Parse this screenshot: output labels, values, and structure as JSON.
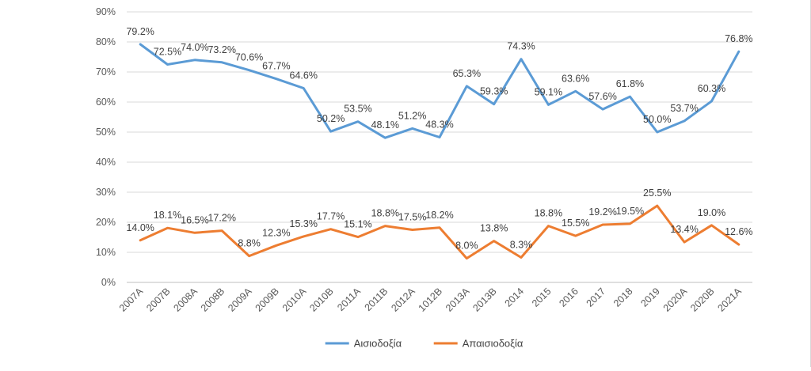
{
  "chart_data": {
    "type": "line",
    "title": "",
    "xlabel": "",
    "ylabel": "",
    "ylim": [
      0,
      90
    ],
    "y_ticks": [
      "0%",
      "10%",
      "20%",
      "30%",
      "40%",
      "50%",
      "60%",
      "70%",
      "80%",
      "90%"
    ],
    "grid": true,
    "legend_position": "bottom",
    "categories": [
      "2007A",
      "2007B",
      "2008A",
      "2008B",
      "2009A",
      "2009B",
      "2010A",
      "2010B",
      "2011A",
      "2011B",
      "2012A",
      "1012B",
      "2013A",
      "2013B",
      "2014",
      "2015",
      "2016",
      "2017",
      "2018",
      "2019",
      "2020A",
      "2020B",
      "2021A"
    ],
    "series": [
      {
        "name": "Αισιοδοξία",
        "color": "#5b9bd5",
        "values": [
          79.2,
          72.5,
          74.0,
          73.2,
          70.6,
          67.7,
          64.6,
          50.2,
          53.5,
          48.1,
          51.2,
          48.3,
          65.3,
          59.3,
          74.3,
          59.1,
          63.6,
          57.6,
          61.8,
          50.0,
          53.7,
          60.3,
          76.8
        ],
        "labels": [
          "79.2%",
          "72.5%",
          "74.0%",
          "73.2%",
          "70.6%",
          "67.7%",
          "64.6%",
          "50.2%",
          "53.5%",
          "48.1%",
          "51.2%",
          "48.3%",
          "65.3%",
          "59.3%",
          "74.3%",
          "59.1%",
          "63.6%",
          "57.6%",
          "61.8%",
          "50.0%",
          "53.7%",
          "60.3%",
          "76.8%"
        ]
      },
      {
        "name": "Απαισιοδοξία",
        "color": "#ed7d31",
        "values": [
          14.0,
          18.1,
          16.5,
          17.2,
          8.8,
          12.3,
          15.3,
          17.7,
          15.1,
          18.8,
          17.5,
          18.2,
          8.0,
          13.8,
          8.3,
          18.8,
          15.5,
          19.2,
          19.5,
          25.5,
          13.4,
          19.0,
          12.6
        ],
        "labels": [
          "14.0%",
          "18.1%",
          "16.5%",
          "17.2%",
          "8.8%",
          "12.3%",
          "15.3%",
          "17.7%",
          "15.1%",
          "18.8%",
          "17.5%",
          "18.2%",
          "8.0%",
          "13.8%",
          "8.3%",
          "18.8%",
          "15.5%",
          "19.2%",
          "19.5%",
          "25.5%",
          "13.4%",
          "19.0%",
          "12.6%"
        ]
      }
    ]
  }
}
